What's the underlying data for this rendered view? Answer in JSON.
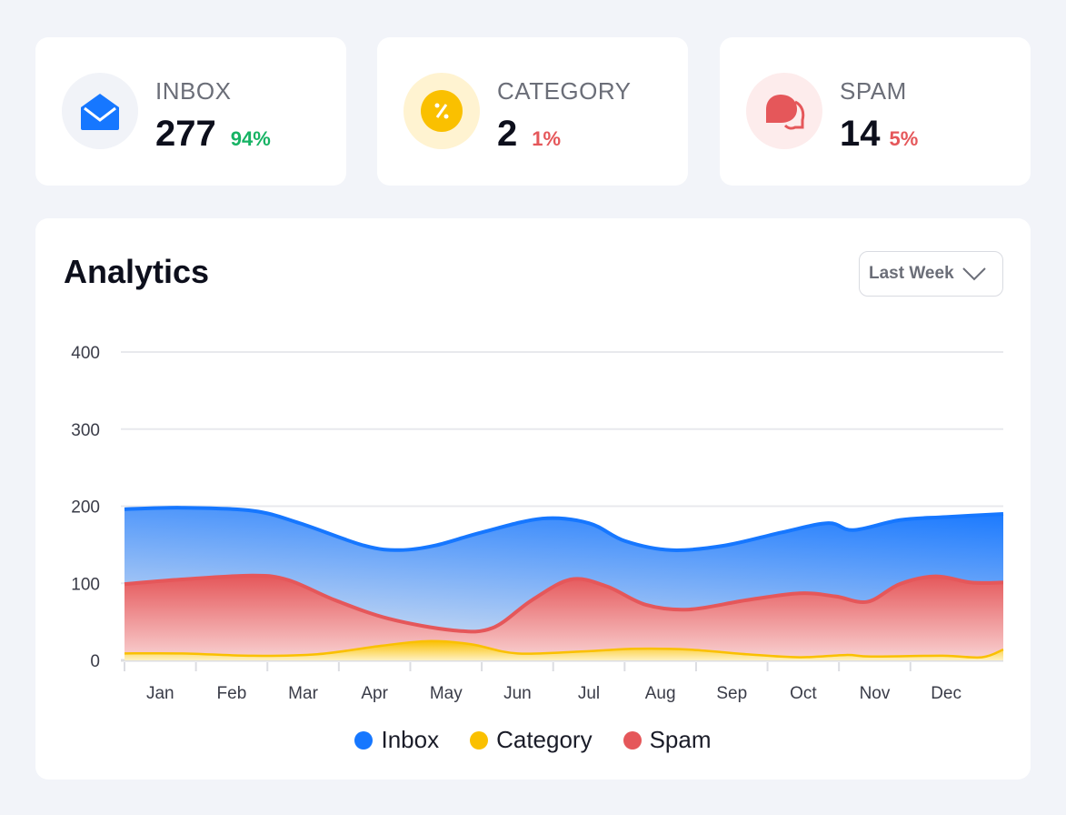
{
  "stats": [
    {
      "label": "INBOX",
      "value": "277",
      "pct": "94%",
      "pct_color": "#16b364",
      "icon": "open-envelope-icon"
    },
    {
      "label": "CATEGORY",
      "value": "2",
      "pct": "1%",
      "pct_color": "#e5575a",
      "icon": "percent-badge-icon"
    },
    {
      "label": "SPAM",
      "value": "14",
      "pct": "5%",
      "pct_color": "#e5575a",
      "icon": "chat-bubbles-icon"
    }
  ],
  "analytics": {
    "title": "Analytics",
    "range_select": "Last Week"
  },
  "chart_data": {
    "type": "area",
    "title": "Analytics",
    "categories": [
      "Jan",
      "Feb",
      "Mar",
      "Apr",
      "May",
      "Jun",
      "Jul",
      "Aug",
      "Sep",
      "Oct",
      "Nov",
      "Dec"
    ],
    "yticks": [
      "0",
      "100",
      "200",
      "300",
      "400"
    ],
    "ylim": [
      0,
      400
    ],
    "xlim": [
      -0.5,
      11.8
    ],
    "grid": true,
    "legend_placement": "bottom",
    "series": [
      {
        "name": "Inbox",
        "color": "#1677ff",
        "points": [
          [
            -0.5,
            196
          ],
          [
            0.3,
            198
          ],
          [
            1.3,
            194
          ],
          [
            1.95,
            178
          ],
          [
            2.85,
            149
          ],
          [
            3.35,
            143
          ],
          [
            3.85,
            149
          ],
          [
            4.5,
            166
          ],
          [
            5.35,
            184
          ],
          [
            6,
            178
          ],
          [
            6.5,
            155
          ],
          [
            7.15,
            143
          ],
          [
            7.9,
            149
          ],
          [
            8.7,
            166
          ],
          [
            9.35,
            178
          ],
          [
            9.7,
            169
          ],
          [
            10.35,
            182
          ],
          [
            11,
            186
          ],
          [
            11.8,
            190
          ]
        ]
      },
      {
        "name": "Spam",
        "color": "#e5575a",
        "points": [
          [
            -0.5,
            99
          ],
          [
            0.3,
            105
          ],
          [
            1.3,
            110
          ],
          [
            1.8,
            104
          ],
          [
            2.45,
            78
          ],
          [
            3.2,
            54
          ],
          [
            4.1,
            39
          ],
          [
            4.65,
            42
          ],
          [
            5.2,
            78
          ],
          [
            5.75,
            105
          ],
          [
            6.25,
            96
          ],
          [
            6.8,
            72
          ],
          [
            7.4,
            66
          ],
          [
            8.2,
            78
          ],
          [
            8.95,
            87
          ],
          [
            9.45,
            83
          ],
          [
            9.9,
            76
          ],
          [
            10.35,
            99
          ],
          [
            10.85,
            109
          ],
          [
            11.35,
            101
          ],
          [
            11.8,
            101
          ]
        ]
      },
      {
        "name": "Category",
        "color": "#fac000",
        "points": [
          [
            -0.5,
            9
          ],
          [
            0.3,
            9
          ],
          [
            1.3,
            6
          ],
          [
            2.2,
            8
          ],
          [
            3.1,
            19
          ],
          [
            3.75,
            25
          ],
          [
            4.35,
            21
          ],
          [
            5,
            9
          ],
          [
            6,
            12
          ],
          [
            6.65,
            15
          ],
          [
            7.4,
            14
          ],
          [
            8.2,
            8
          ],
          [
            8.95,
            4
          ],
          [
            9.6,
            7
          ],
          [
            9.95,
            5
          ],
          [
            10.95,
            6
          ],
          [
            11.5,
            4
          ],
          [
            11.8,
            14
          ]
        ]
      }
    ]
  }
}
